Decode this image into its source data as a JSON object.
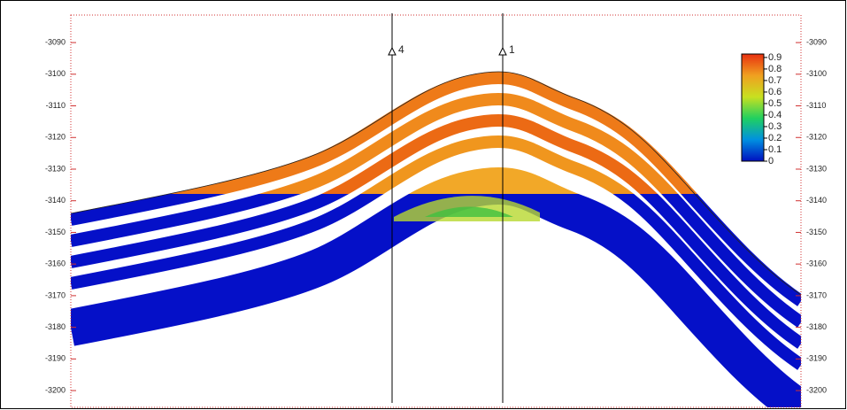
{
  "chart_data": {
    "type": "cross-section",
    "ylim": [
      -3205.3,
      -3081.3
    ],
    "yticks": [
      -3090,
      -3100,
      -3110,
      -3120,
      -3130,
      -3140,
      -3150,
      -3160,
      -3170,
      -3180,
      -3190,
      -3200
    ],
    "wells": [
      {
        "name": "4"
      },
      {
        "name": "1"
      }
    ],
    "colorbar": {
      "lim": [
        0,
        0.93
      ],
      "ticks": [
        0,
        0.1,
        0.2,
        0.3,
        0.4,
        0.5,
        0.6,
        0.7,
        0.8,
        0.9
      ]
    }
  }
}
